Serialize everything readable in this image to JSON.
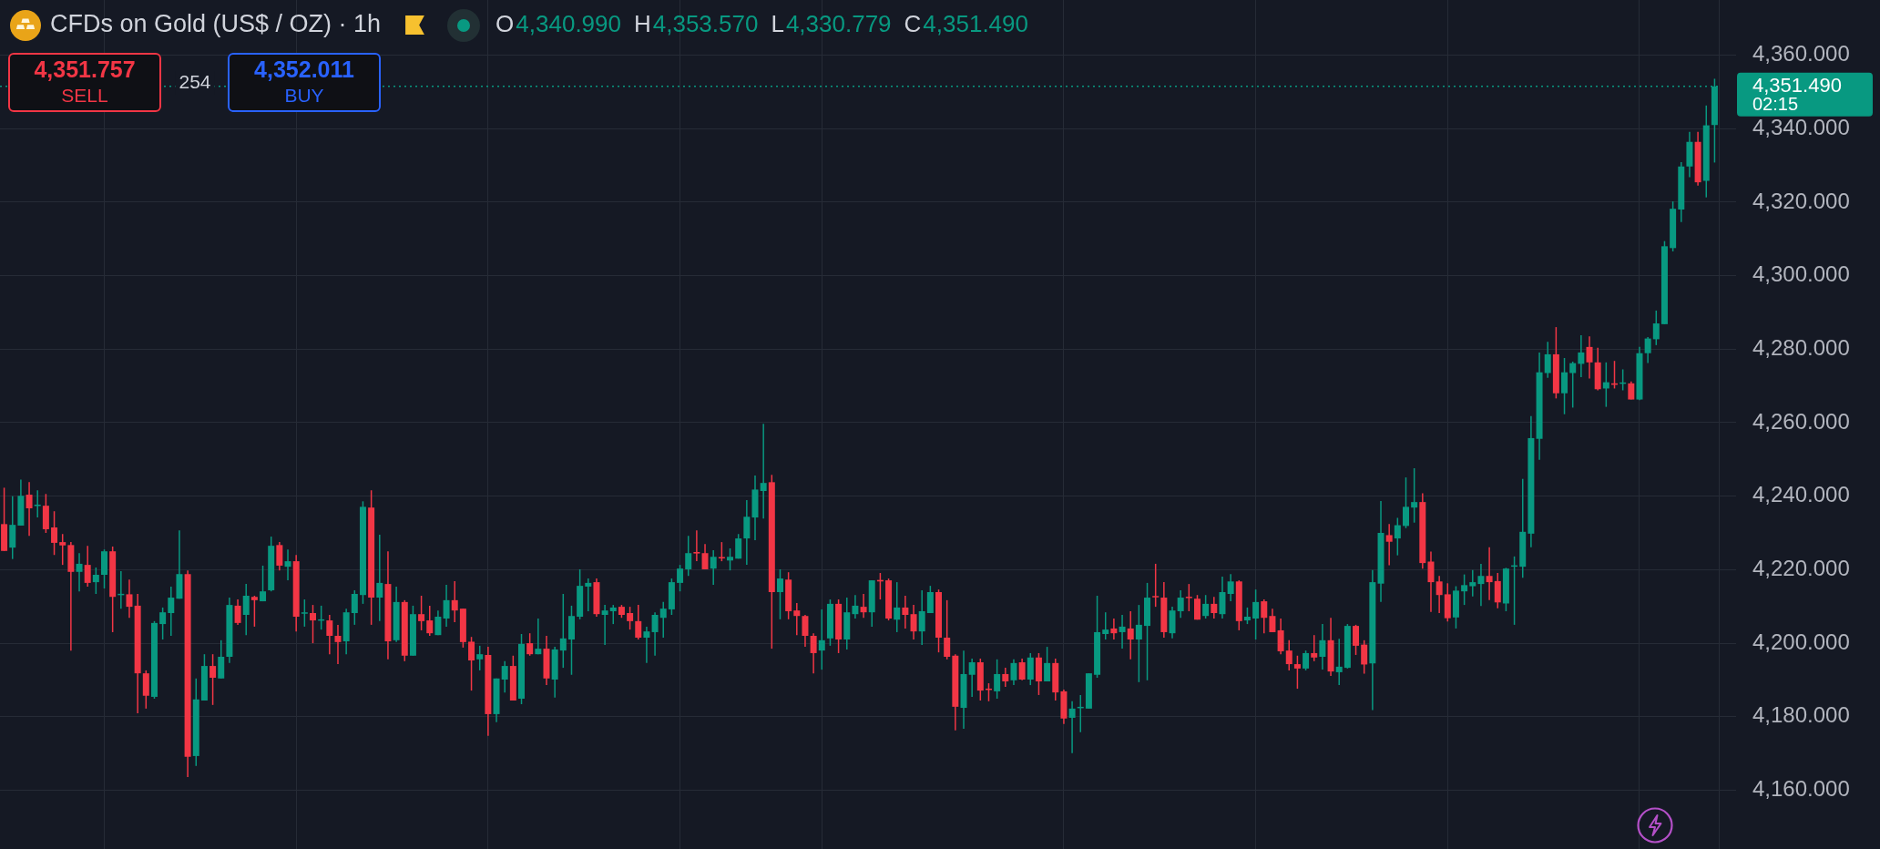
{
  "chart_data": {
    "type": "candlestick",
    "title": "CFDs on Gold (US$ / OZ) · 1h",
    "categories": [
      null,
      null,
      null,
      null,
      null,
      null,
      null,
      null,
      null,
      null,
      null,
      null,
      null,
      null,
      null,
      null,
      null,
      null,
      null,
      null,
      null,
      null,
      null,
      null,
      null,
      null,
      null,
      null,
      null,
      null,
      null,
      null,
      null,
      null,
      null,
      null,
      null,
      null,
      null,
      null,
      null,
      null,
      null,
      null,
      null,
      null,
      null,
      null,
      null,
      null,
      null,
      null,
      null,
      null,
      null,
      null,
      null,
      null,
      null,
      null,
      null,
      null,
      null,
      null,
      null,
      null,
      null,
      null,
      null,
      null,
      null,
      null,
      null,
      null,
      null,
      null,
      null,
      null,
      null,
      null,
      null,
      null,
      null,
      null,
      null,
      null,
      null,
      null,
      null,
      null,
      null,
      null,
      null,
      null,
      null,
      null,
      null,
      null,
      null,
      null,
      null,
      null,
      null,
      null,
      null,
      null,
      null,
      null,
      null,
      null,
      null,
      null,
      null,
      null,
      null,
      null,
      null,
      null,
      null,
      null,
      null,
      null,
      null,
      null,
      null,
      null,
      null,
      null,
      null,
      null,
      null,
      null,
      null,
      null,
      null,
      null,
      null,
      null,
      null,
      null,
      null,
      null,
      null,
      null,
      null,
      null,
      null,
      null,
      null,
      null,
      null,
      null,
      null,
      null,
      null,
      null,
      null,
      null,
      null,
      null,
      null,
      null,
      null,
      null,
      null,
      null,
      null,
      null,
      null,
      null,
      null,
      null,
      null,
      null,
      null,
      null,
      null,
      null,
      null,
      null,
      null,
      null,
      null,
      null,
      null,
      null,
      null,
      null,
      null,
      null,
      null,
      null,
      null,
      null,
      null,
      null,
      null,
      null,
      null,
      null,
      null,
      null,
      null,
      null,
      null,
      null
    ],
    "ohlc": [
      [
        4232.4,
        4242.3,
        4225.1,
        4225.1
      ],
      [
        4226.0,
        4240.0,
        4222.9,
        4232.2
      ],
      [
        4232.0,
        4244.5,
        4232.0,
        4240.1
      ],
      [
        4240.4,
        4243.8,
        4229.2,
        4236.7
      ],
      [
        4237.4,
        4241.6,
        4234.2,
        4237.6
      ],
      [
        4237.4,
        4240.6,
        4230.0,
        4231.0
      ],
      [
        4231.5,
        4235.9,
        4224.0,
        4227.3
      ],
      [
        4227.5,
        4229.7,
        4221.3,
        4226.6
      ],
      [
        4226.7,
        4227.5,
        4198.0,
        4219.4
      ],
      [
        4219.4,
        4224.5,
        4214.1,
        4221.6
      ],
      [
        4221.3,
        4226.5,
        4215.4,
        4216.4
      ],
      [
        4216.6,
        4220.6,
        4213.4,
        4218.6
      ],
      [
        4218.6,
        4225.5,
        4214.9,
        4225.0
      ],
      [
        4225.0,
        4226.3,
        4203.0,
        4212.6
      ],
      [
        4213.2,
        4219.6,
        4209.4,
        4213.3
      ],
      [
        4213.3,
        4217.3,
        4206.9,
        4209.9
      ],
      [
        4210.2,
        4213.4,
        4180.9,
        4191.8
      ],
      [
        4191.8,
        4192.6,
        4182.2,
        4185.7
      ],
      [
        4185.4,
        4206.0,
        4184.9,
        4205.5
      ],
      [
        4205.2,
        4209.7,
        4201.0,
        4208.4
      ],
      [
        4208.2,
        4215.4,
        4202.0,
        4212.4
      ],
      [
        4212.1,
        4230.7,
        4212.1,
        4218.8
      ],
      [
        4218.8,
        4219.8,
        4163.6,
        4169.1
      ],
      [
        4169.3,
        4190.4,
        4166.6,
        4184.7
      ],
      [
        4184.4,
        4197.0,
        4184.4,
        4193.8
      ],
      [
        4193.8,
        4197.0,
        4183.2,
        4190.6
      ],
      [
        4190.4,
        4200.8,
        4190.4,
        4196.3
      ],
      [
        4196.3,
        4212.4,
        4194.6,
        4210.4
      ],
      [
        4210.2,
        4211.9,
        4205.0,
        4205.5
      ],
      [
        4207.7,
        4216.1,
        4202.2,
        4212.9
      ],
      [
        4212.6,
        4212.9,
        4204.5,
        4211.7
      ],
      [
        4211.4,
        4221.1,
        4211.4,
        4214.1
      ],
      [
        4214.4,
        4229.0,
        4214.1,
        4226.5
      ],
      [
        4226.7,
        4227.5,
        4219.8,
        4221.1
      ],
      [
        4220.8,
        4225.5,
        4217.1,
        4222.3
      ],
      [
        4222.3,
        4224.0,
        4203.2,
        4207.2
      ],
      [
        4208.1,
        4211.9,
        4204.5,
        4208.3
      ],
      [
        4208.2,
        4210.4,
        4200.0,
        4206.2
      ],
      [
        4206.2,
        4210.2,
        4203.7,
        4206.4
      ],
      [
        4206.2,
        4207.7,
        4197.0,
        4202.0
      ],
      [
        4202.0,
        4205.0,
        4194.3,
        4200.3
      ],
      [
        4200.5,
        4209.4,
        4197.0,
        4208.4
      ],
      [
        4208.2,
        4214.4,
        4205.0,
        4213.4
      ],
      [
        4213.1,
        4238.6,
        4210.7,
        4237.1
      ],
      [
        4236.9,
        4241.6,
        4205.0,
        4212.4
      ],
      [
        4212.4,
        4229.5,
        4206.0,
        4216.4
      ],
      [
        4216.1,
        4225.0,
        4195.6,
        4200.5
      ],
      [
        4200.8,
        4215.4,
        4200.3,
        4211.2
      ],
      [
        4211.2,
        4211.7,
        4195.1,
        4196.6
      ],
      [
        4196.6,
        4210.2,
        4196.6,
        4207.9
      ],
      [
        4207.9,
        4212.9,
        4203.5,
        4206.0
      ],
      [
        4206.2,
        4210.2,
        4202.0,
        4202.7
      ],
      [
        4202.2,
        4208.9,
        4202.2,
        4207.2
      ],
      [
        4206.7,
        4215.9,
        4204.5,
        4211.7
      ],
      [
        4211.7,
        4216.9,
        4205.7,
        4208.9
      ],
      [
        4209.4,
        4209.4,
        4198.8,
        4200.3
      ],
      [
        4200.4,
        4201.7,
        4187.1,
        4195.3
      ],
      [
        4195.6,
        4199.3,
        4192.6,
        4197.0
      ],
      [
        4196.8,
        4199.0,
        4174.8,
        4180.7
      ],
      [
        4180.7,
        4190.4,
        4178.5,
        4190.4
      ],
      [
        4190.1,
        4195.1,
        4186.6,
        4193.8
      ],
      [
        4193.8,
        4196.6,
        4184.4,
        4184.4
      ],
      [
        4184.9,
        4202.5,
        4183.4,
        4199.8
      ],
      [
        4200.0,
        4202.7,
        4196.6,
        4197.0
      ],
      [
        4197.0,
        4206.7,
        4197.0,
        4198.5
      ],
      [
        4198.5,
        4202.0,
        4188.6,
        4190.4
      ],
      [
        4190.1,
        4199.0,
        4185.2,
        4198.3
      ],
      [
        4198.0,
        4213.4,
        4193.3,
        4201.3
      ],
      [
        4201.0,
        4210.2,
        4191.4,
        4207.4
      ],
      [
        4207.2,
        4220.1,
        4206.5,
        4215.6
      ],
      [
        4215.4,
        4217.6,
        4208.7,
        4216.4
      ],
      [
        4216.6,
        4217.6,
        4207.2,
        4207.9
      ],
      [
        4207.7,
        4210.4,
        4199.5,
        4208.9
      ],
      [
        4208.7,
        4210.4,
        4205.2,
        4209.7
      ],
      [
        4209.9,
        4210.4,
        4206.9,
        4207.7
      ],
      [
        4208.2,
        4209.9,
        4203.7,
        4206.0
      ],
      [
        4206.0,
        4210.4,
        4201.0,
        4201.5
      ],
      [
        4201.5,
        4204.5,
        4194.6,
        4203.2
      ],
      [
        4203.0,
        4208.4,
        4196.6,
        4207.7
      ],
      [
        4206.9,
        4211.2,
        4201.5,
        4209.4
      ],
      [
        4209.2,
        4217.6,
        4207.7,
        4216.6
      ],
      [
        4216.4,
        4221.3,
        4214.1,
        4220.3
      ],
      [
        4220.1,
        4229.2,
        4218.3,
        4224.5
      ],
      [
        4224.8,
        4230.7,
        4222.3,
        4224.4
      ],
      [
        4224.5,
        4227.0,
        4220.1,
        4220.1
      ],
      [
        4220.3,
        4225.3,
        4215.9,
        4223.5
      ],
      [
        4223.4,
        4227.5,
        4222.3,
        4223.1
      ],
      [
        4222.5,
        4225.8,
        4219.8,
        4223.5
      ],
      [
        4223.0,
        4229.7,
        4223.0,
        4228.5
      ],
      [
        4228.5,
        4238.9,
        4221.3,
        4234.4
      ],
      [
        4234.2,
        4245.6,
        4228.0,
        4241.8
      ],
      [
        4241.4,
        4259.7,
        4233.9,
        4243.6
      ],
      [
        4243.8,
        4245.8,
        4198.5,
        4213.9
      ],
      [
        4213.9,
        4220.1,
        4206.5,
        4217.6
      ],
      [
        4217.3,
        4219.3,
        4206.5,
        4208.7
      ],
      [
        4208.9,
        4210.9,
        4202.2,
        4207.4
      ],
      [
        4207.4,
        4207.7,
        4199.0,
        4202.0
      ],
      [
        4202.0,
        4202.7,
        4191.8,
        4197.3
      ],
      [
        4198.0,
        4209.2,
        4192.8,
        4200.8
      ],
      [
        4201.3,
        4211.9,
        4199.3,
        4210.7
      ],
      [
        4210.7,
        4211.9,
        4197.3,
        4201.0
      ],
      [
        4201.0,
        4212.4,
        4198.3,
        4208.4
      ],
      [
        4207.9,
        4213.1,
        4206.7,
        4210.2
      ],
      [
        4209.9,
        4213.4,
        4206.9,
        4208.4
      ],
      [
        4208.4,
        4217.1,
        4204.5,
        4217.1
      ],
      [
        4217.2,
        4219.1,
        4211.9,
        4216.8
      ],
      [
        4217.1,
        4217.6,
        4206.2,
        4206.7
      ],
      [
        4206.4,
        4216.6,
        4203.0,
        4209.7
      ],
      [
        4209.7,
        4212.9,
        4204.0,
        4207.7
      ],
      [
        4207.9,
        4210.4,
        4201.0,
        4203.2
      ],
      [
        4203.2,
        4214.4,
        4199.5,
        4208.7
      ],
      [
        4208.2,
        4215.6,
        4208.2,
        4213.9
      ],
      [
        4213.9,
        4214.6,
        4197.5,
        4201.5
      ],
      [
        4201.5,
        4211.7,
        4195.6,
        4196.3
      ],
      [
        4196.6,
        4197.0,
        4176.3,
        4182.7
      ],
      [
        4182.4,
        4198.0,
        4176.7,
        4191.6
      ],
      [
        4191.4,
        4195.8,
        4185.4,
        4194.8
      ],
      [
        4194.8,
        4195.8,
        4184.4,
        4187.1
      ],
      [
        4187.6,
        4189.1,
        4184.2,
        4187.3
      ],
      [
        4186.9,
        4195.6,
        4184.9,
        4191.6
      ],
      [
        4191.6,
        4193.3,
        4188.1,
        4189.6
      ],
      [
        4189.9,
        4195.6,
        4188.6,
        4194.6
      ],
      [
        4194.8,
        4195.8,
        4189.9,
        4190.1
      ],
      [
        4190.1,
        4197.3,
        4188.6,
        4196.1
      ],
      [
        4196.1,
        4197.3,
        4185.9,
        4189.6
      ],
      [
        4189.6,
        4199.0,
        4189.6,
        4194.6
      ],
      [
        4194.6,
        4195.8,
        4184.4,
        4186.6
      ],
      [
        4186.9,
        4187.4,
        4178.0,
        4179.5
      ],
      [
        4179.7,
        4184.2,
        4170.1,
        4182.2
      ],
      [
        4182.4,
        4185.9,
        4175.8,
        4182.6
      ],
      [
        4182.2,
        4191.8,
        4182.2,
        4191.8
      ],
      [
        4191.4,
        4212.9,
        4190.6,
        4203.0
      ],
      [
        4202.5,
        4208.4,
        4201.0,
        4203.7
      ],
      [
        4204.0,
        4206.7,
        4201.0,
        4202.7
      ],
      [
        4203.0,
        4207.7,
        4198.5,
        4204.5
      ],
      [
        4204.0,
        4208.7,
        4195.6,
        4201.0
      ],
      [
        4201.0,
        4210.4,
        4189.4,
        4205.0
      ],
      [
        4204.7,
        4216.4,
        4189.9,
        4212.4
      ],
      [
        4212.8,
        4221.6,
        4209.9,
        4212.5
      ],
      [
        4212.4,
        4216.6,
        4201.5,
        4203.0
      ],
      [
        4202.7,
        4209.9,
        4201.3,
        4208.9
      ],
      [
        4208.7,
        4214.4,
        4206.9,
        4212.4
      ],
      [
        4212.6,
        4216.1,
        4208.7,
        4212.3
      ],
      [
        4212.1,
        4213.1,
        4206.4,
        4206.4
      ],
      [
        4207.4,
        4213.1,
        4206.7,
        4210.7
      ],
      [
        4210.7,
        4212.6,
        4206.7,
        4208.2
      ],
      [
        4207.9,
        4218.1,
        4206.7,
        4213.9
      ],
      [
        4213.4,
        4218.8,
        4211.4,
        4216.8
      ],
      [
        4216.8,
        4217.1,
        4203.5,
        4206.0
      ],
      [
        4206.2,
        4209.7,
        4205.2,
        4207.2
      ],
      [
        4206.7,
        4214.6,
        4201.0,
        4211.2
      ],
      [
        4211.4,
        4211.9,
        4202.7,
        4206.9
      ],
      [
        4207.4,
        4209.4,
        4203.0,
        4203.0
      ],
      [
        4203.5,
        4206.7,
        4197.0,
        4197.8
      ],
      [
        4198.0,
        4200.8,
        4192.6,
        4194.3
      ],
      [
        4194.3,
        4196.6,
        4187.6,
        4193.1
      ],
      [
        4193.1,
        4198.0,
        4192.6,
        4197.3
      ],
      [
        4197.3,
        4202.2,
        4195.1,
        4196.1
      ],
      [
        4196.3,
        4205.2,
        4192.8,
        4200.8
      ],
      [
        4200.8,
        4206.9,
        4191.1,
        4192.3
      ],
      [
        4192.1,
        4201.2,
        4188.6,
        4193.6
      ],
      [
        4193.3,
        4205.2,
        4193.1,
        4204.7
      ],
      [
        4204.7,
        4205.0,
        4196.8,
        4199.3
      ],
      [
        4199.6,
        4200.8,
        4191.7,
        4194.2
      ],
      [
        4194.5,
        4219.9,
        4181.8,
        4216.6
      ],
      [
        4216.2,
        4238.7,
        4211.2,
        4230.0
      ],
      [
        4229.4,
        4232.4,
        4221.2,
        4227.6
      ],
      [
        4228.5,
        4234.1,
        4223.9,
        4232.1
      ],
      [
        4231.9,
        4245.1,
        4231.3,
        4237.1
      ],
      [
        4236.9,
        4247.6,
        4232.8,
        4238.4
      ],
      [
        4238.4,
        4240.8,
        4220.3,
        4221.8
      ],
      [
        4222.2,
        4224.9,
        4208.5,
        4216.6
      ],
      [
        4216.8,
        4218.3,
        4208.2,
        4213.1
      ],
      [
        4213.3,
        4216.3,
        4205.9,
        4206.8
      ],
      [
        4207.0,
        4215.5,
        4204.0,
        4214.3
      ],
      [
        4214.1,
        4218.7,
        4210.4,
        4215.8
      ],
      [
        4215.5,
        4219.9,
        4212.7,
        4216.6
      ],
      [
        4216.1,
        4221.6,
        4210.1,
        4218.3
      ],
      [
        4218.3,
        4226.1,
        4211.7,
        4216.6
      ],
      [
        4216.9,
        4219.1,
        4209.5,
        4211.1
      ],
      [
        4210.8,
        4220.5,
        4208.7,
        4220.3
      ],
      [
        4220.9,
        4223.6,
        4205.0,
        4221.1
      ],
      [
        4220.8,
        4244.7,
        4217.8,
        4230.3
      ],
      [
        4229.8,
        4261.8,
        4226.1,
        4255.8
      ],
      [
        4255.6,
        4279.1,
        4249.9,
        4273.7
      ],
      [
        4273.5,
        4282.0,
        4272.2,
        4278.6
      ],
      [
        4278.6,
        4286.0,
        4266.6,
        4268.0
      ],
      [
        4268.0,
        4277.6,
        4262.3,
        4273.7
      ],
      [
        4273.5,
        4276.6,
        4264.1,
        4276.2
      ],
      [
        4276.0,
        4283.8,
        4272.4,
        4279.1
      ],
      [
        4280.6,
        4283.5,
        4272.0,
        4276.4
      ],
      [
        4276.4,
        4280.4,
        4268.8,
        4269.1
      ],
      [
        4269.3,
        4276.4,
        4264.3,
        4271.0
      ],
      [
        4270.7,
        4276.8,
        4269.3,
        4270.3
      ],
      [
        4270.6,
        4274.5,
        4268.8,
        4270.9
      ],
      [
        4270.7,
        4271.2,
        4266.3,
        4266.3
      ],
      [
        4266.3,
        4280.6,
        4266.1,
        4278.9
      ],
      [
        4278.9,
        4283.3,
        4276.2,
        4282.9
      ],
      [
        4282.7,
        4290.5,
        4281.1,
        4287.0
      ],
      [
        4286.8,
        4309.4,
        4286.8,
        4308.0
      ],
      [
        4307.5,
        4320.2,
        4306.6,
        4318.2
      ],
      [
        4318.0,
        4330.9,
        4314.6,
        4329.7
      ],
      [
        4329.7,
        4339.1,
        4326.8,
        4336.4
      ],
      [
        4336.4,
        4339.1,
        4324.5,
        4325.4
      ],
      [
        4325.8,
        4346.3,
        4321.3,
        4340.9
      ],
      [
        4340.99,
        4353.57,
        4330.779,
        4351.49
      ]
    ],
    "ylim": [
      4144,
      4375
    ],
    "yticks": [
      {
        "value": 4160,
        "label": "4,160.000"
      },
      {
        "value": 4180,
        "label": "4,180.000"
      },
      {
        "value": 4200,
        "label": "4,200.000"
      },
      {
        "value": 4220,
        "label": "4,220.000"
      },
      {
        "value": 4240,
        "label": "4,240.000"
      },
      {
        "value": 4260,
        "label": "4,260.000"
      },
      {
        "value": 4280,
        "label": "4,280.000"
      },
      {
        "value": 4300,
        "label": "4,300.000"
      },
      {
        "value": 4320,
        "label": "4,320.000"
      },
      {
        "value": 4340,
        "label": "4,340.000"
      },
      {
        "value": 4360,
        "label": "4,360.000"
      }
    ],
    "tick_labels": "y",
    "grid": true,
    "ref_lines": [
      {
        "axis": "y",
        "value": 4351.49,
        "label": "4,351.490",
        "color": "#089981",
        "line_style": "dotted"
      }
    ],
    "annotations": [
      "O",
      "4,340.990",
      "H",
      "4,353.570",
      "L",
      "4,330.779",
      "C",
      "4,351.490",
      "4,351.757",
      "SELL",
      "254",
      "4,352.011",
      "BUY",
      "02:15"
    ]
  }
}
